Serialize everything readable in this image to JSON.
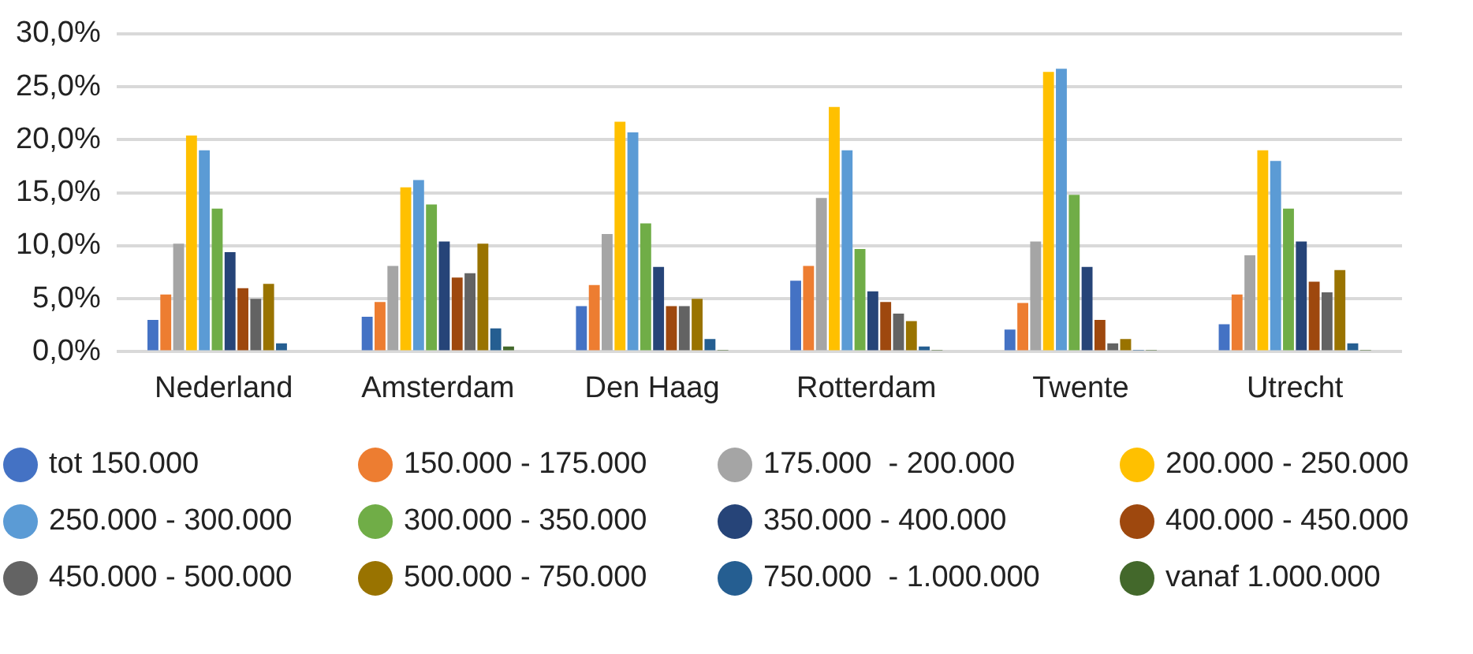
{
  "chart_data": {
    "type": "bar",
    "categories": [
      "Nederland",
      "Amsterdam",
      "Den Haag",
      "Rotterdam",
      "Twente",
      "Utrecht"
    ],
    "ylim": [
      0,
      30
    ],
    "yticks": [
      {
        "value": 0,
        "label": "0,0%"
      },
      {
        "value": 5,
        "label": "5,0%"
      },
      {
        "value": 10,
        "label": "10,0%"
      },
      {
        "value": 15,
        "label": "15,0%"
      },
      {
        "value": 20,
        "label": "20,0%"
      },
      {
        "value": 25,
        "label": "25,0%"
      },
      {
        "value": 30,
        "label": "30,0%"
      }
    ],
    "grid": "y",
    "legend": "bottom",
    "marker": "circle",
    "series": [
      {
        "name": "tot 150.000",
        "color": "#4472c4",
        "values": [
          3.0,
          3.3,
          4.3,
          6.7,
          2.1,
          2.6
        ]
      },
      {
        "name": "150.000 - 175.000",
        "color": "#ed7d31",
        "values": [
          5.4,
          4.7,
          6.3,
          8.1,
          4.6,
          5.4
        ]
      },
      {
        "name": "175.000  - 200.000",
        "color": "#a5a5a5",
        "values": [
          10.2,
          8.1,
          11.1,
          14.5,
          10.4,
          9.1
        ]
      },
      {
        "name": "200.000 - 250.000",
        "color": "#ffc000",
        "values": [
          20.4,
          15.5,
          21.7,
          23.1,
          26.4,
          19.0
        ]
      },
      {
        "name": "250.000 - 300.000",
        "color": "#5b9bd5",
        "values": [
          19.0,
          16.2,
          20.7,
          19.0,
          26.7,
          18.0
        ]
      },
      {
        "name": "300.000 - 350.000",
        "color": "#70ad47",
        "values": [
          13.5,
          13.9,
          12.1,
          9.7,
          14.8,
          13.5
        ]
      },
      {
        "name": "350.000 - 400.000",
        "color": "#264478",
        "values": [
          9.4,
          10.4,
          8.0,
          5.7,
          8.0,
          10.4
        ]
      },
      {
        "name": "400.000 - 450.000",
        "color": "#9e480e",
        "values": [
          6.0,
          7.0,
          4.3,
          4.7,
          3.0,
          6.6
        ]
      },
      {
        "name": "450.000 - 500.000",
        "color": "#636363",
        "values": [
          5.0,
          7.4,
          4.3,
          3.6,
          0.8,
          5.6
        ]
      },
      {
        "name": "500.000 - 750.000",
        "color": "#997300",
        "values": [
          6.4,
          10.2,
          5.0,
          2.9,
          1.2,
          7.7
        ]
      },
      {
        "name": "750.000  - 1.000.000",
        "color": "#255e91",
        "values": [
          0.8,
          2.2,
          1.2,
          0.5,
          0.1,
          0.8
        ]
      },
      {
        "name": "vanaf 1.000.000",
        "color": "#43682b",
        "values": [
          null,
          0.5,
          0.1,
          0.1,
          0.1,
          0.1
        ]
      }
    ]
  }
}
